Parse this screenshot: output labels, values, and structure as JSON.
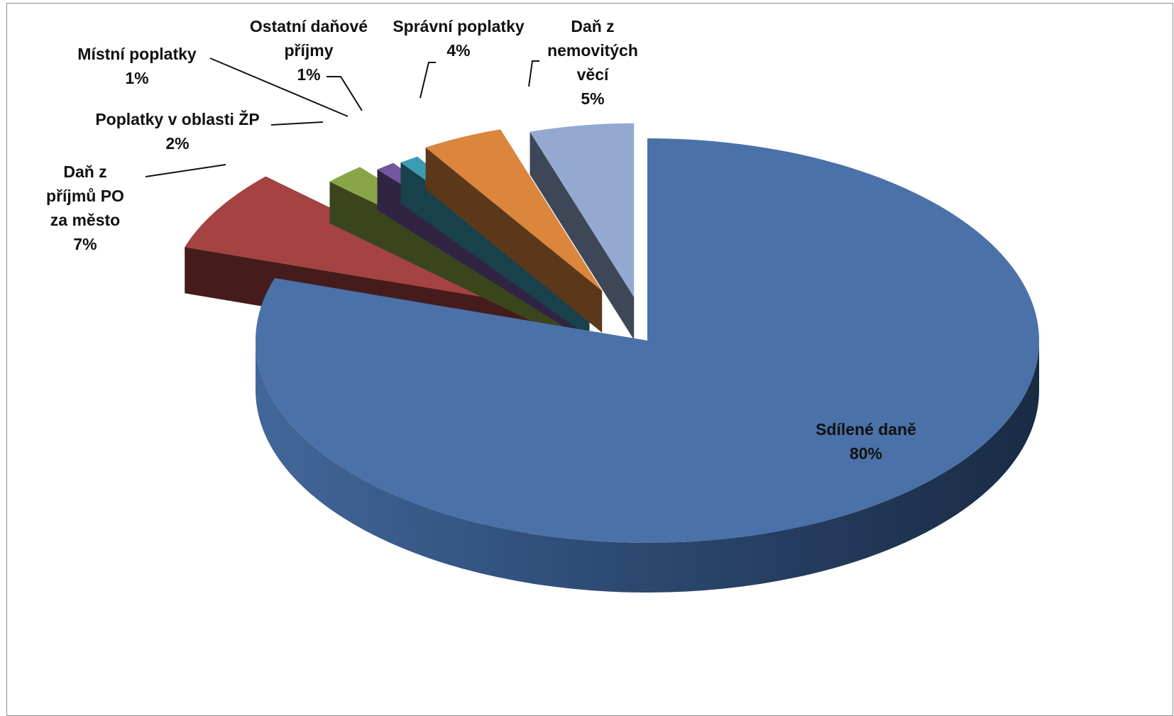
{
  "chart_data": {
    "type": "pie",
    "style": "3d-exploded",
    "title": "",
    "slices": [
      {
        "name": "Sdílené daně",
        "label_lines": [
          "Sdílené daně"
        ],
        "percent_label": "80%",
        "value": 80,
        "color": "#4a72a8"
      },
      {
        "name": "Daň z příjmů PO za město",
        "label_lines": [
          "Daň z",
          "příjmů PO",
          "za město"
        ],
        "percent_label": "7%",
        "value": 7,
        "color": "#a44341"
      },
      {
        "name": "Poplatky v oblasti ŽP",
        "label_lines": [
          "Poplatky v oblasti ŽP"
        ],
        "percent_label": "2%",
        "value": 2,
        "color": "#89a548"
      },
      {
        "name": "Místní poplatky",
        "label_lines": [
          "Místní poplatky"
        ],
        "percent_label": "1%",
        "value": 1,
        "color": "#7455a0"
      },
      {
        "name": "Ostatní daňové příjmy",
        "label_lines": [
          "Ostatní daňové",
          "příjmy"
        ],
        "percent_label": "1%",
        "value": 1,
        "color": "#3a9bb2"
      },
      {
        "name": "Správní poplatky",
        "label_lines": [
          "Správní poplatky"
        ],
        "percent_label": "4%",
        "value": 4,
        "color": "#db853d"
      },
      {
        "name": "Daň z nemovitých věcí",
        "label_lines": [
          "Daň z",
          "nemovitých",
          "věcí"
        ],
        "percent_label": "5%",
        "value": 5,
        "color": "#93a9d0"
      }
    ]
  }
}
